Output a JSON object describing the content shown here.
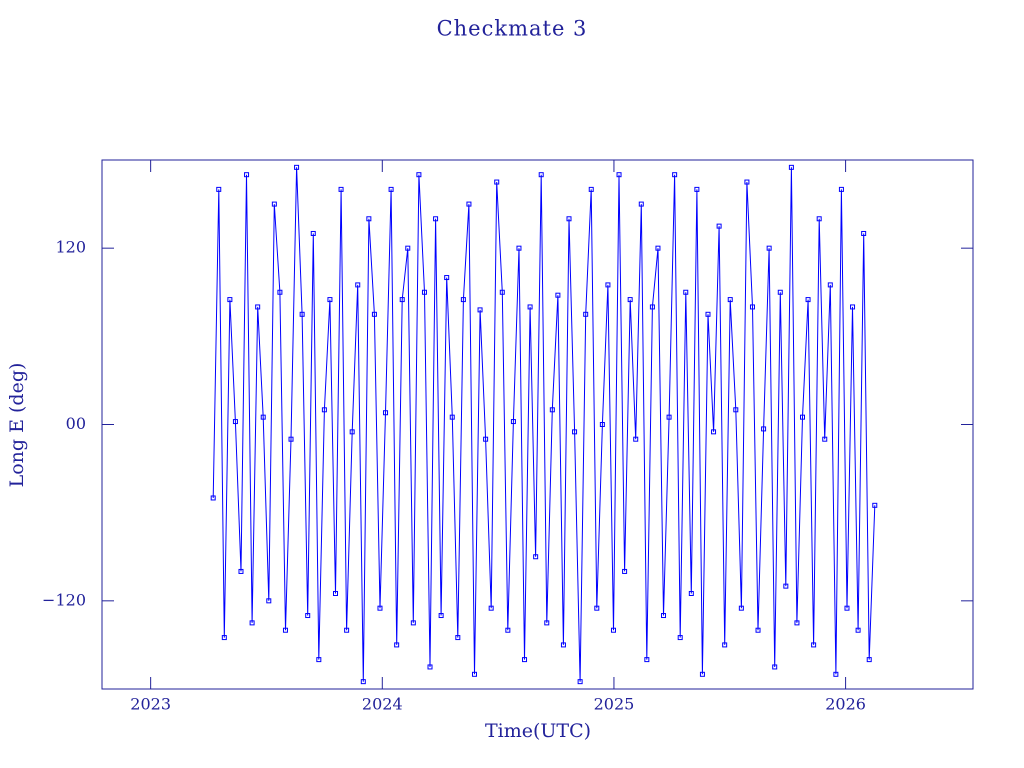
{
  "chart_data": {
    "type": "line",
    "title": "Checkmate 3",
    "x_label": "Time(UTC)",
    "y_label": "Long E (deg)",
    "color": "#0000ff",
    "markers": true,
    "xlim": [
      2022.79,
      2026.55
    ],
    "xticks": [
      2023,
      2024,
      2025,
      2026
    ],
    "ylim": [
      -180,
      180
    ],
    "yticks": [
      {
        "value": -120,
        "label": "−120"
      },
      {
        "value": 0,
        "label": "00"
      },
      120
    ],
    "x": [
      2023.27,
      2023.294,
      2023.318,
      2023.342,
      2023.366,
      2023.39,
      2023.414,
      2023.438,
      2023.462,
      2023.486,
      2023.51,
      2023.534,
      2023.558,
      2023.582,
      2023.606,
      2023.63,
      2023.654,
      2023.678,
      2023.702,
      2023.726,
      2023.75,
      2023.774,
      2023.798,
      2023.822,
      2023.846,
      2023.87,
      2023.894,
      2023.918,
      2023.942,
      2023.966,
      2023.99,
      2024.014,
      2024.038,
      2024.062,
      2024.086,
      2024.11,
      2024.134,
      2024.158,
      2024.182,
      2024.206,
      2024.23,
      2024.254,
      2024.278,
      2024.302,
      2024.326,
      2024.35,
      2024.374,
      2024.398,
      2024.422,
      2024.446,
      2024.47,
      2024.494,
      2024.518,
      2024.542,
      2024.566,
      2024.59,
      2024.614,
      2024.638,
      2024.662,
      2024.686,
      2024.71,
      2024.734,
      2024.758,
      2024.782,
      2024.806,
      2024.83,
      2024.854,
      2024.878,
      2024.902,
      2024.926,
      2024.95,
      2024.974,
      2024.998,
      2025.022,
      2025.046,
      2025.07,
      2025.094,
      2025.118,
      2025.142,
      2025.166,
      2025.19,
      2025.214,
      2025.238,
      2025.262,
      2025.286,
      2025.31,
      2025.334,
      2025.358,
      2025.382,
      2025.406,
      2025.43,
      2025.454,
      2025.478,
      2025.502,
      2025.526,
      2025.55,
      2025.574,
      2025.598,
      2025.622,
      2025.646,
      2025.67,
      2025.694,
      2025.718,
      2025.742,
      2025.766,
      2025.79,
      2025.814,
      2025.838,
      2025.862,
      2025.886,
      2025.91,
      2025.934,
      2025.958,
      2025.982,
      2026.006,
      2026.03,
      2026.054,
      2026.078,
      2026.102,
      2026.126
    ],
    "values": [
      -50,
      160,
      -145,
      85,
      2,
      -100,
      170,
      -135,
      80,
      5,
      -120,
      150,
      90,
      -140,
      -10,
      175,
      75,
      -130,
      130,
      -160,
      10,
      85,
      -115,
      160,
      -140,
      -5,
      95,
      -175,
      140,
      75,
      -125,
      8,
      160,
      -150,
      85,
      120,
      -135,
      170,
      90,
      -165,
      140,
      -130,
      100,
      5,
      -145,
      85,
      150,
      -170,
      78,
      -10,
      -125,
      165,
      90,
      -140,
      2,
      120,
      -160,
      80,
      -90,
      170,
      -135,
      10,
      88,
      -150,
      140,
      -5,
      -175,
      75,
      160,
      -125,
      0,
      95,
      -140,
      170,
      -100,
      85,
      -10,
      150,
      -160,
      80,
      120,
      -130,
      5,
      170,
      -145,
      90,
      -115,
      160,
      -170,
      75,
      -5,
      135,
      -150,
      85,
      10,
      -125,
      165,
      80,
      -140,
      -3,
      120,
      -165,
      90,
      -110,
      175,
      -135,
      5,
      85,
      -150,
      140,
      -10,
      95,
      -170,
      160,
      -125,
      80,
      -140,
      130,
      -160,
      -55
    ]
  }
}
